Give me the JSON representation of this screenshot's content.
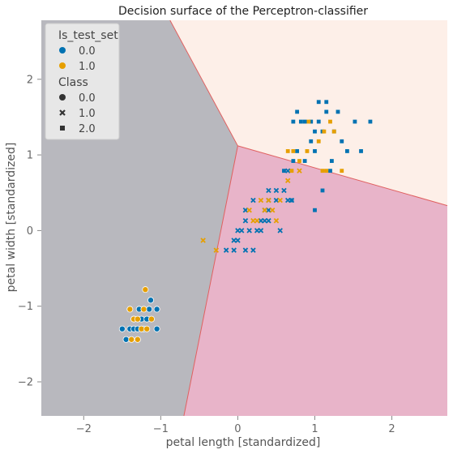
{
  "chart_data": {
    "type": "scatter",
    "title": "Decision surface of the Perceptron-classifier",
    "xlabel": "petal length [standardized]",
    "ylabel": "petal width [standardized]",
    "xlim": [
      -2.55,
      2.72
    ],
    "ylim": [
      -2.45,
      2.78
    ],
    "xticks": [
      -2,
      -1,
      0,
      1,
      2
    ],
    "yticks": [
      -2,
      -1,
      0,
      1,
      2
    ],
    "xtick_labels": [
      "−2",
      "−1",
      "0",
      "1",
      "2"
    ],
    "ytick_labels": [
      "−2",
      "−1",
      "0",
      "1",
      "2"
    ],
    "grid": false,
    "legend_position": "top-left",
    "legend": {
      "group1_title": "Is_test_set",
      "group1": [
        {
          "label": "0.0",
          "color": "#0072B2"
        },
        {
          "label": "1.0",
          "color": "#E69F00"
        }
      ],
      "group2_title": "Class",
      "group2": [
        {
          "label": "0.0",
          "marker": "circle"
        },
        {
          "label": "1.0",
          "marker": "x"
        },
        {
          "label": "2.0",
          "marker": "square"
        }
      ]
    },
    "regions": [
      {
        "class": 0,
        "color": "#b8b8be",
        "polygon": [
          [
            -2.55,
            2.78
          ],
          [
            -0.88,
            2.78
          ],
          [
            0.0,
            1.12
          ],
          [
            -0.7,
            -2.45
          ],
          [
            -2.55,
            -2.45
          ]
        ]
      },
      {
        "class": 1,
        "color": "#e8b4c9",
        "polygon": [
          [
            0.0,
            1.12
          ],
          [
            2.72,
            0.33
          ],
          [
            2.72,
            -2.45
          ],
          [
            -0.7,
            -2.45
          ]
        ]
      },
      {
        "class": 2,
        "color": "#fdefe8",
        "polygon": [
          [
            -0.88,
            2.78
          ],
          [
            2.72,
            2.78
          ],
          [
            2.72,
            0.33
          ],
          [
            0.0,
            1.12
          ]
        ]
      }
    ],
    "boundary_color": "#e06060",
    "series": [
      {
        "test": 0,
        "class": 0,
        "points": [
          [
            -1.5,
            -1.3
          ],
          [
            -1.45,
            -1.44
          ],
          [
            -1.4,
            -1.3
          ],
          [
            -1.35,
            -1.3
          ],
          [
            -1.35,
            -1.17
          ],
          [
            -1.3,
            -1.3
          ],
          [
            -1.28,
            -1.04
          ],
          [
            -1.25,
            -1.17
          ],
          [
            -1.22,
            -1.3
          ],
          [
            -1.18,
            -1.17
          ],
          [
            -1.15,
            -1.04
          ],
          [
            -1.13,
            -0.92
          ],
          [
            -1.05,
            -1.04
          ],
          [
            -1.05,
            -1.3
          ]
        ]
      },
      {
        "test": 1,
        "class": 0,
        "points": [
          [
            -1.4,
            -1.04
          ],
          [
            -1.38,
            -1.44
          ],
          [
            -1.35,
            -1.17
          ],
          [
            -1.3,
            -1.44
          ],
          [
            -1.3,
            -1.17
          ],
          [
            -1.25,
            -1.3
          ],
          [
            -1.22,
            -1.04
          ],
          [
            -1.2,
            -0.78
          ],
          [
            -1.18,
            -1.3
          ],
          [
            -1.12,
            -1.17
          ]
        ]
      },
      {
        "test": 0,
        "class": 1,
        "points": [
          [
            0.1,
            0.27
          ],
          [
            0.05,
            0.0
          ],
          [
            0.0,
            0.0
          ],
          [
            -0.05,
            -0.13
          ],
          [
            0.0,
            -0.13
          ],
          [
            0.1,
            -0.26
          ],
          [
            -0.15,
            -0.26
          ],
          [
            -0.05,
            -0.26
          ],
          [
            0.1,
            0.13
          ],
          [
            0.15,
            0.0
          ],
          [
            0.25,
            0.0
          ],
          [
            0.3,
            0.13
          ],
          [
            0.35,
            0.13
          ],
          [
            0.4,
            0.13
          ],
          [
            0.2,
            0.4
          ],
          [
            0.4,
            0.4
          ],
          [
            0.5,
            0.4
          ],
          [
            0.5,
            0.53
          ],
          [
            0.4,
            0.53
          ],
          [
            0.6,
            0.53
          ],
          [
            0.65,
            0.4
          ],
          [
            0.7,
            0.4
          ],
          [
            0.65,
            0.79
          ],
          [
            0.4,
            0.27
          ],
          [
            0.35,
            0.27
          ],
          [
            0.55,
            0.0
          ],
          [
            0.2,
            -0.26
          ],
          [
            0.3,
            0.0
          ]
        ]
      },
      {
        "test": 1,
        "class": 1,
        "points": [
          [
            -0.45,
            -0.13
          ],
          [
            -0.28,
            -0.26
          ],
          [
            0.25,
            0.13
          ],
          [
            0.35,
            0.27
          ],
          [
            0.4,
            0.4
          ],
          [
            0.45,
            0.27
          ],
          [
            0.15,
            0.27
          ],
          [
            0.5,
            0.13
          ],
          [
            0.3,
            0.4
          ],
          [
            0.2,
            0.13
          ],
          [
            0.55,
            0.4
          ],
          [
            0.65,
            0.66
          ],
          [
            0.8,
            0.79
          ]
        ]
      },
      {
        "test": 0,
        "class": 2,
        "points": [
          [
            0.72,
            1.44
          ],
          [
            0.77,
            1.57
          ],
          [
            0.82,
            1.44
          ],
          [
            0.87,
            1.44
          ],
          [
            0.72,
            0.92
          ],
          [
            0.77,
            1.05
          ],
          [
            0.87,
            0.92
          ],
          [
            0.95,
            1.18
          ],
          [
            0.95,
            1.44
          ],
          [
            1.0,
            1.31
          ],
          [
            1.05,
            1.44
          ],
          [
            1.1,
            1.31
          ],
          [
            1.15,
            1.57
          ],
          [
            1.15,
            1.7
          ],
          [
            1.25,
            1.31
          ],
          [
            1.35,
            1.18
          ],
          [
            1.42,
            1.05
          ],
          [
            1.52,
            1.44
          ],
          [
            1.6,
            1.05
          ],
          [
            1.72,
            1.44
          ],
          [
            1.2,
            0.79
          ],
          [
            1.22,
            0.92
          ],
          [
            1.1,
            0.53
          ],
          [
            1.0,
            0.27
          ],
          [
            0.7,
            0.4
          ],
          [
            0.6,
            0.79
          ],
          [
            1.05,
            1.7
          ],
          [
            1.0,
            1.05
          ],
          [
            1.3,
            1.57
          ]
        ]
      },
      {
        "test": 1,
        "class": 2,
        "points": [
          [
            0.65,
            1.05
          ],
          [
            0.72,
            1.05
          ],
          [
            0.8,
            0.92
          ],
          [
            0.9,
            1.05
          ],
          [
            0.92,
            1.44
          ],
          [
            1.05,
            1.18
          ],
          [
            1.12,
            1.31
          ],
          [
            1.15,
            0.79
          ],
          [
            1.35,
            0.79
          ],
          [
            1.25,
            1.31
          ],
          [
            1.2,
            1.44
          ],
          [
            1.1,
            0.79
          ],
          [
            0.7,
            0.79
          ]
        ]
      }
    ]
  }
}
